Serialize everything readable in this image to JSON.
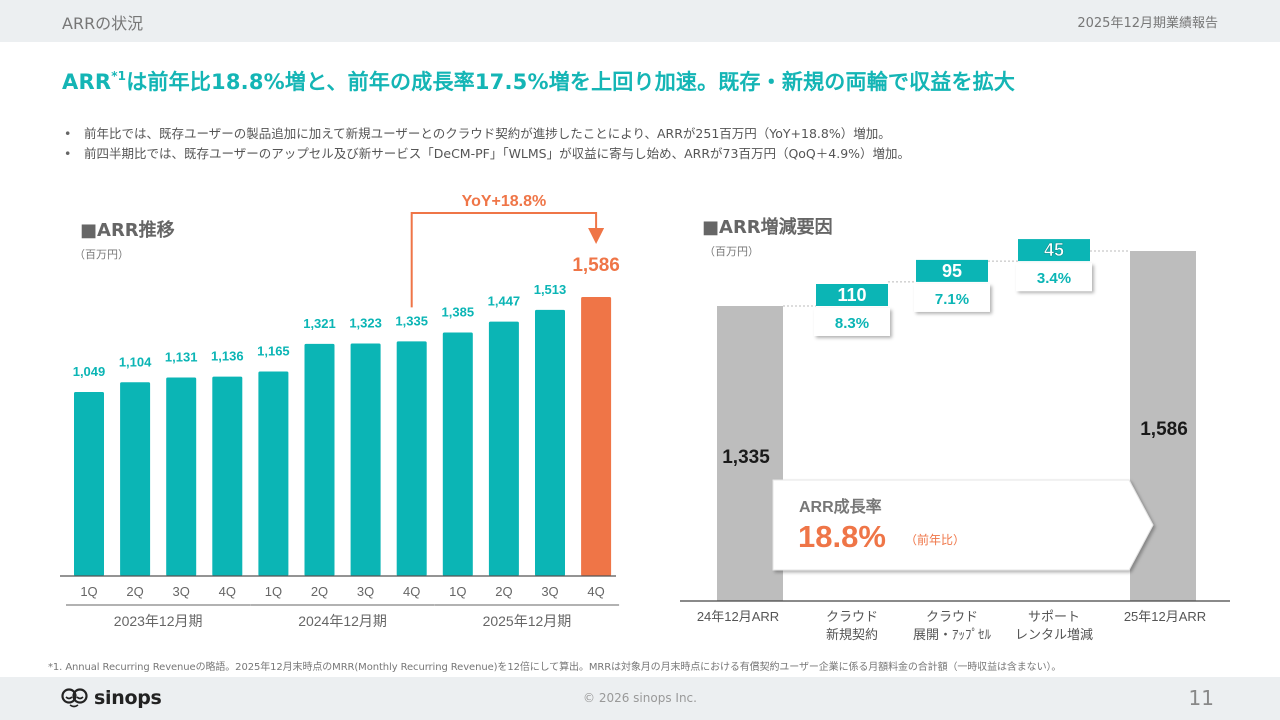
{
  "header": {
    "section_title": "ARRの状況",
    "report_title": "2025年12月期業績報告"
  },
  "headline": {
    "text_before": "ARR",
    "footnote_mark": "*1",
    "text_after": "は前年比18.8%増と、前年の成長率17.5%増を上回り加速。既存・新規の両輪で収益を拡大"
  },
  "bullets": [
    "前年比では、既存ユーザーの製品追加に加えて新規ユーザーとのクラウド契約が進捗したことにより、ARRが251百万円（YoY+18.8%）増加。",
    "前四半期比では、既存ユーザーのアップセル及び新サービス「DeCM-PF」「WLMS」が収益に寄与し始め、ARRが73百万円（QoQ＋4.9%）増加。"
  ],
  "colors": {
    "teal": "#0bb5b5",
    "orange": "#ef7547",
    "gray_bar": "#bdbdbd",
    "headline": "#14b5b5"
  },
  "chart_data": [
    {
      "type": "bar",
      "title": "■ARR推移",
      "unit": "（百万円）",
      "categories": [
        "1Q",
        "2Q",
        "3Q",
        "4Q",
        "1Q",
        "2Q",
        "3Q",
        "4Q",
        "1Q",
        "2Q",
        "3Q",
        "4Q"
      ],
      "values": [
        1049,
        1104,
        1131,
        1136,
        1165,
        1321,
        1323,
        1335,
        1385,
        1447,
        1513,
        1586
      ],
      "value_labels": [
        "1,049",
        "1,104",
        "1,131",
        "1,136",
        "1,165",
        "1,321",
        "1,323",
        "1,335",
        "1,385",
        "1,447",
        "1,513",
        "1,586"
      ],
      "highlight_index": 11,
      "groups": [
        {
          "label": "2023年12月期",
          "start": 0,
          "end": 3
        },
        {
          "label": "2024年12月期",
          "start": 4,
          "end": 7
        },
        {
          "label": "2025年12月期",
          "start": 8,
          "end": 11
        }
      ],
      "annotation": {
        "label": "YoY+18.8%",
        "from_index": 7,
        "to_index": 11
      },
      "xlabel": "",
      "ylabel": "",
      "ylim": [
        0,
        1700
      ],
      "grid": false
    },
    {
      "type": "bar",
      "subtype": "waterfall",
      "title": "■ARR増減要因",
      "unit": "（百万円）",
      "categories": [
        "24年12月ARR",
        "クラウド\n新規契約",
        "クラウド\n展開・ｱｯﾌﾟｾﾙ",
        "サポート\nレンタル増減",
        "25年12月ARR"
      ],
      "category_lines": [
        [
          "24年12月ARR"
        ],
        [
          "クラウド",
          "新規契約"
        ],
        [
          "クラウド",
          "展開・ｱｯﾌﾟｾﾙ"
        ],
        [
          "サポート",
          "レンタル増減"
        ],
        [
          "25年12月ARR"
        ]
      ],
      "values": [
        1335,
        110,
        95,
        45,
        1586
      ],
      "value_labels": [
        "1,335",
        "110",
        "95",
        "45",
        "1,586"
      ],
      "kinds": [
        "total",
        "delta",
        "delta",
        "delta",
        "total"
      ],
      "percent_labels": [
        null,
        "8.3%",
        "7.1%",
        "3.4%",
        null
      ],
      "growth_callout": {
        "label": "ARR成長率",
        "value": "18.8%",
        "suffix": "（前年比）"
      },
      "ylim": [
        0,
        1600
      ],
      "grid": false
    }
  ],
  "footnote": "*1. Annual Recurring Revenueの略語。2025年12月末時点のMRR(Monthly Recurring Revenue)を12倍にして算出。MRRは対象月の月末時点における有償契約ユーザー企業に係る月額料金の合計額（一時収益は含まない）。",
  "footer": {
    "logo_text": "sinops",
    "copyright": "© 2026 sinops Inc.",
    "page_number": "11"
  }
}
